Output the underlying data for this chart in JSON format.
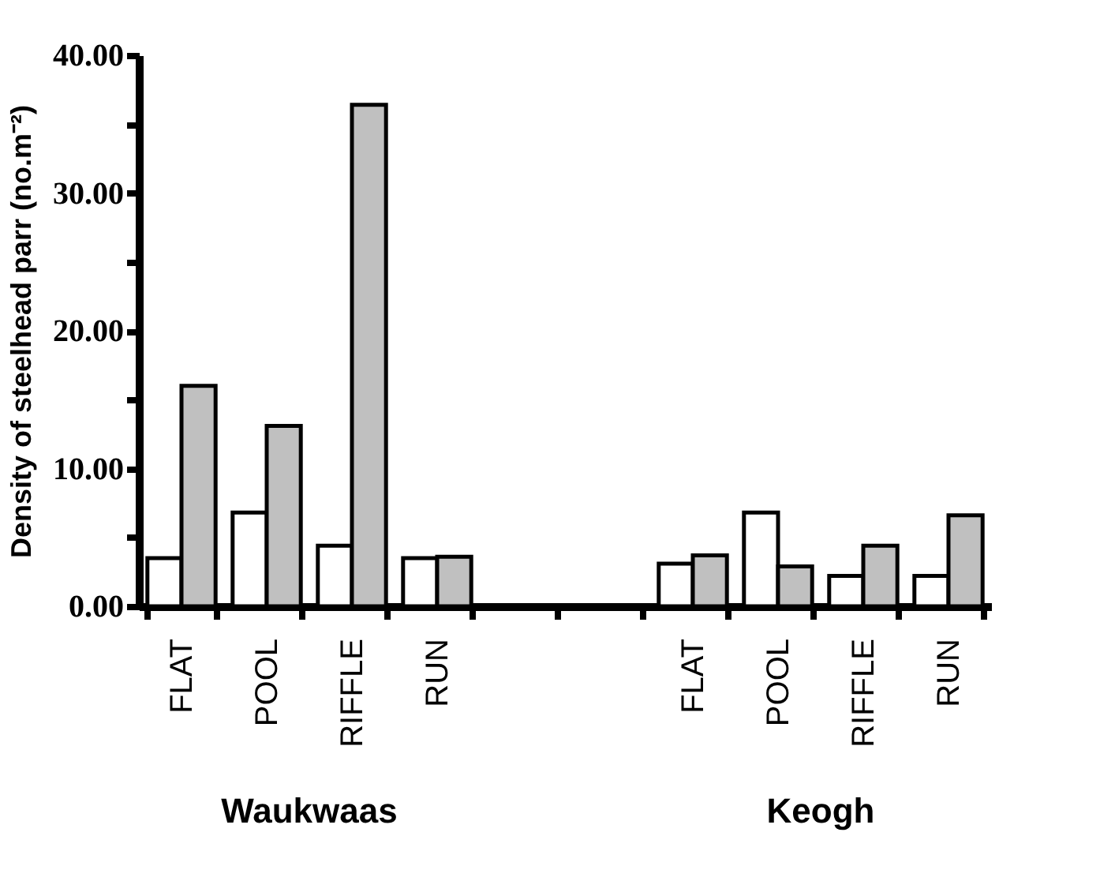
{
  "chart_data": {
    "type": "bar",
    "ylabel": "Density of steelhead parr (no.m⁻²)",
    "categories": [
      "FLAT",
      "POOL",
      "RIFFLE",
      "RUN",
      null,
      null,
      "FLAT",
      "POOL",
      "RIFFLE",
      "RUN"
    ],
    "series": [
      {
        "color": "#ffffff",
        "values": [
          3.5,
          6.8,
          4.4,
          3.5,
          null,
          null,
          3.1,
          6.8,
          2.2,
          2.2
        ]
      },
      {
        "color": "#c0c0c0",
        "values": [
          16.0,
          13.1,
          36.4,
          3.6,
          null,
          null,
          3.7,
          2.9,
          4.4,
          6.6
        ]
      }
    ],
    "ylim": [
      0,
      40
    ],
    "yticks": [
      {
        "value": 0,
        "label": "0.00"
      },
      {
        "value": 5,
        "label": null
      },
      {
        "value": 10,
        "label": "10.00"
      },
      {
        "value": 15,
        "label": null
      },
      {
        "value": 20,
        "label": "20.00"
      },
      {
        "value": 25,
        "label": null
      },
      {
        "value": 30,
        "label": "30.00"
      },
      {
        "value": 35,
        "label": null
      },
      {
        "value": 40,
        "label": "40.00"
      }
    ],
    "annotations": [
      "Waukwaas",
      "Keogh"
    ],
    "grid": false,
    "legend": false
  }
}
